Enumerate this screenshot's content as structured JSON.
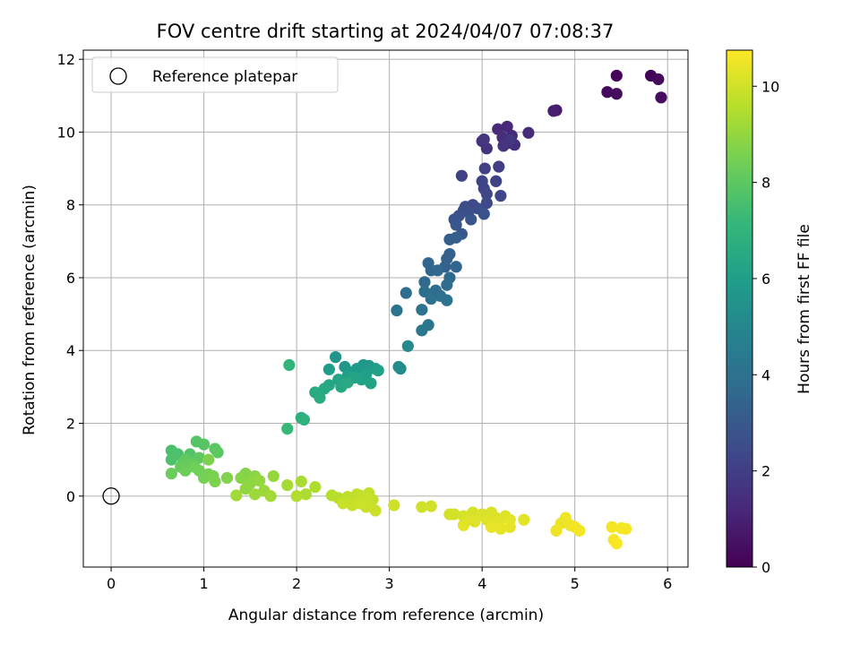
{
  "chart_data": {
    "type": "scatter",
    "title": "FOV centre drift starting at 2024/04/07 07:08:37",
    "xlabel": "Angular distance from reference (arcmin)",
    "ylabel": "Rotation from reference (arcmin)",
    "xlim": [
      -0.3,
      6.22
    ],
    "ylim": [
      -1.95,
      12.25
    ],
    "x_ticks": [
      0,
      1,
      2,
      3,
      4,
      5,
      6
    ],
    "y_ticks": [
      0,
      2,
      4,
      6,
      8,
      10,
      12
    ],
    "grid": true,
    "legend": {
      "position": "top-left",
      "entries": [
        "Reference platepar"
      ]
    },
    "reference_point": {
      "x": 0,
      "y": 0
    },
    "colorbar": {
      "label": "Hours from first FF file",
      "range": [
        0,
        10.75
      ],
      "ticks": [
        0,
        2,
        4,
        6,
        8,
        10
      ],
      "colormap": "viridis"
    },
    "colormap_stops": [
      "#440154",
      "#482878",
      "#3e4989",
      "#31688e",
      "#26828e",
      "#1f9e89",
      "#35b779",
      "#6ece58",
      "#b5de2b",
      "#fde725"
    ],
    "points": [
      [
        5.82,
        11.55,
        0.1
      ],
      [
        5.45,
        11.55,
        0.15
      ],
      [
        5.9,
        11.45,
        0.2
      ],
      [
        5.35,
        11.1,
        0.25
      ],
      [
        5.45,
        11.05,
        0.3
      ],
      [
        5.93,
        10.95,
        0.35
      ],
      [
        4.8,
        10.6,
        0.8
      ],
      [
        4.77,
        10.58,
        0.85
      ],
      [
        4.27,
        10.15,
        1.2
      ],
      [
        4.17,
        10.08,
        1.25
      ],
      [
        4.32,
        9.9,
        1.3
      ],
      [
        4.5,
        9.98,
        1.35
      ],
      [
        4.22,
        9.85,
        1.4
      ],
      [
        4.28,
        9.7,
        1.45
      ],
      [
        4.35,
        9.65,
        1.5
      ],
      [
        4.0,
        9.75,
        1.55
      ],
      [
        4.05,
        9.55,
        1.6
      ],
      [
        4.23,
        9.62,
        1.65
      ],
      [
        4.3,
        9.78,
        1.7
      ],
      [
        4.02,
        9.8,
        1.72
      ],
      [
        4.18,
        9.05,
        2.0
      ],
      [
        4.03,
        9.0,
        2.05
      ],
      [
        3.78,
        8.8,
        2.1
      ],
      [
        4.15,
        8.65,
        2.15
      ],
      [
        4.0,
        8.65,
        2.2
      ],
      [
        4.02,
        8.45,
        2.25
      ],
      [
        4.05,
        8.3,
        2.3
      ],
      [
        4.2,
        8.25,
        2.35
      ],
      [
        4.05,
        8.05,
        2.4
      ],
      [
        3.9,
        8.0,
        2.45
      ],
      [
        3.82,
        7.95,
        2.5
      ],
      [
        3.95,
        7.9,
        2.55
      ],
      [
        3.8,
        7.85,
        2.6
      ],
      [
        3.85,
        7.8,
        2.65
      ],
      [
        3.75,
        7.7,
        2.7
      ],
      [
        4.02,
        7.75,
        2.75
      ],
      [
        3.7,
        7.6,
        2.8
      ],
      [
        3.88,
        7.6,
        2.85
      ],
      [
        3.72,
        7.45,
        2.9
      ],
      [
        3.78,
        7.2,
        2.95
      ],
      [
        3.65,
        7.05,
        3.2
      ],
      [
        3.72,
        7.1,
        3.25
      ],
      [
        3.65,
        6.65,
        3.3
      ],
      [
        3.62,
        6.52,
        3.35
      ],
      [
        3.6,
        6.3,
        3.4
      ],
      [
        3.72,
        6.3,
        3.45
      ],
      [
        3.42,
        6.4,
        3.5
      ],
      [
        3.45,
        6.2,
        3.55
      ],
      [
        3.52,
        6.2,
        3.6
      ],
      [
        3.65,
        6.0,
        3.65
      ],
      [
        3.38,
        5.88,
        3.7
      ],
      [
        3.62,
        5.8,
        3.75
      ],
      [
        3.18,
        5.58,
        3.8
      ],
      [
        3.5,
        5.65,
        3.85
      ],
      [
        3.38,
        5.62,
        3.9
      ],
      [
        3.55,
        5.5,
        3.95
      ],
      [
        3.45,
        5.42,
        4.0
      ],
      [
        3.62,
        5.38,
        4.05
      ],
      [
        3.35,
        5.12,
        4.1
      ],
      [
        3.08,
        5.1,
        4.15
      ],
      [
        3.42,
        4.7,
        4.2
      ],
      [
        3.35,
        4.55,
        4.25
      ],
      [
        3.2,
        4.12,
        5.1
      ],
      [
        3.12,
        3.5,
        5.2
      ],
      [
        3.1,
        3.55,
        5.25
      ],
      [
        2.42,
        3.82,
        5.6
      ],
      [
        2.52,
        3.55,
        5.65
      ],
      [
        2.72,
        3.6,
        5.7
      ],
      [
        2.78,
        3.58,
        5.75
      ],
      [
        2.85,
        3.5,
        5.8
      ],
      [
        2.65,
        3.5,
        5.85
      ],
      [
        2.58,
        3.4,
        5.9
      ],
      [
        2.35,
        3.48,
        5.95
      ],
      [
        2.55,
        3.3,
        6.0
      ],
      [
        2.75,
        3.35,
        6.05
      ],
      [
        2.88,
        3.45,
        6.1
      ],
      [
        2.7,
        3.2,
        6.15
      ],
      [
        2.8,
        3.1,
        6.2
      ],
      [
        2.62,
        3.25,
        6.25
      ],
      [
        2.45,
        3.2,
        6.3
      ],
      [
        2.35,
        3.05,
        6.35
      ],
      [
        2.48,
        3.0,
        6.4
      ],
      [
        2.55,
        3.12,
        6.45
      ],
      [
        2.3,
        2.95,
        6.5
      ],
      [
        2.2,
        2.85,
        6.55
      ],
      [
        2.25,
        2.7,
        6.6
      ],
      [
        2.05,
        2.15,
        6.8
      ],
      [
        2.08,
        2.1,
        6.85
      ],
      [
        1.92,
        3.6,
        7.0
      ],
      [
        1.9,
        1.85,
        7.2
      ],
      [
        0.65,
        1.25,
        7.6
      ],
      [
        0.72,
        1.15,
        7.65
      ],
      [
        0.65,
        1.0,
        7.7
      ],
      [
        0.78,
        0.95,
        7.75
      ],
      [
        0.85,
        1.15,
        7.8
      ],
      [
        0.92,
        1.5,
        7.85
      ],
      [
        1.0,
        1.42,
        7.9
      ],
      [
        1.12,
        1.3,
        7.95
      ],
      [
        1.15,
        1.2,
        8.0
      ],
      [
        0.95,
        1.05,
        8.05
      ],
      [
        0.8,
        1.0,
        8.1
      ],
      [
        0.88,
        0.9,
        8.15
      ],
      [
        0.75,
        0.8,
        8.2
      ],
      [
        0.65,
        0.62,
        8.25
      ],
      [
        0.8,
        0.7,
        8.3
      ],
      [
        0.9,
        0.8,
        8.35
      ],
      [
        0.95,
        0.7,
        8.4
      ],
      [
        1.05,
        0.6,
        8.45
      ],
      [
        1.0,
        0.5,
        8.5
      ],
      [
        1.1,
        0.55,
        8.55
      ],
      [
        1.12,
        0.4,
        8.6
      ],
      [
        1.05,
        1.0,
        8.62
      ],
      [
        1.25,
        0.5,
        8.7
      ],
      [
        1.45,
        0.62,
        8.75
      ],
      [
        1.4,
        0.5,
        8.8
      ],
      [
        1.55,
        0.55,
        8.85
      ],
      [
        1.5,
        0.35,
        8.9
      ],
      [
        1.45,
        0.2,
        8.95
      ],
      [
        1.6,
        0.42,
        9.0
      ],
      [
        1.75,
        0.55,
        9.05
      ],
      [
        1.65,
        0.15,
        9.1
      ],
      [
        1.55,
        0.05,
        9.15
      ],
      [
        1.35,
        0.02,
        9.2
      ],
      [
        1.72,
        0.0,
        9.25
      ],
      [
        1.9,
        0.3,
        9.3
      ],
      [
        2.05,
        0.4,
        9.35
      ],
      [
        2.1,
        0.05,
        9.4
      ],
      [
        2.2,
        0.25,
        9.45
      ],
      [
        2.0,
        0.0,
        9.5
      ],
      [
        2.38,
        0.02,
        9.55
      ],
      [
        2.45,
        -0.05,
        9.6
      ],
      [
        2.55,
        -0.02,
        9.65
      ],
      [
        2.62,
        -0.1,
        9.7
      ],
      [
        2.7,
        0.0,
        9.72
      ],
      [
        2.65,
        0.05,
        9.75
      ],
      [
        2.78,
        0.08,
        9.78
      ],
      [
        2.72,
        -0.05,
        9.8
      ],
      [
        2.82,
        -0.1,
        9.82
      ],
      [
        2.5,
        -0.2,
        9.85
      ],
      [
        2.6,
        -0.25,
        9.88
      ],
      [
        2.75,
        -0.3,
        9.9
      ],
      [
        2.85,
        -0.4,
        9.92
      ],
      [
        2.68,
        -0.2,
        9.94
      ],
      [
        3.05,
        -0.25,
        9.96
      ],
      [
        3.35,
        -0.3,
        9.98
      ],
      [
        3.45,
        -0.28,
        10.0
      ],
      [
        3.65,
        -0.5,
        10.02
      ],
      [
        3.7,
        -0.5,
        10.05
      ],
      [
        3.8,
        -0.55,
        10.07
      ],
      [
        3.9,
        -0.45,
        10.09
      ],
      [
        3.95,
        -0.55,
        10.11
      ],
      [
        4.0,
        -0.5,
        10.13
      ],
      [
        4.1,
        -0.45,
        10.15
      ],
      [
        4.15,
        -0.6,
        10.17
      ],
      [
        4.25,
        -0.55,
        10.19
      ],
      [
        3.85,
        -0.65,
        10.21
      ],
      [
        3.92,
        -0.7,
        10.23
      ],
      [
        4.05,
        -0.65,
        10.25
      ],
      [
        4.18,
        -0.7,
        10.27
      ],
      [
        4.3,
        -0.65,
        10.29
      ],
      [
        4.45,
        -0.65,
        10.31
      ],
      [
        3.8,
        -0.8,
        10.33
      ],
      [
        4.1,
        -0.85,
        10.35
      ],
      [
        4.2,
        -0.9,
        10.37
      ],
      [
        4.3,
        -0.85,
        10.39
      ],
      [
        4.85,
        -0.75,
        10.45
      ],
      [
        4.9,
        -0.6,
        10.48
      ],
      [
        4.95,
        -0.8,
        10.5
      ],
      [
        4.8,
        -0.95,
        10.52
      ],
      [
        5.0,
        -0.85,
        10.55
      ],
      [
        5.05,
        -0.95,
        10.57
      ],
      [
        5.4,
        -0.85,
        10.6
      ],
      [
        5.5,
        -0.88,
        10.62
      ],
      [
        5.55,
        -0.9,
        10.64
      ],
      [
        5.42,
        -1.2,
        10.66
      ],
      [
        5.45,
        -1.3,
        10.68
      ]
    ]
  }
}
